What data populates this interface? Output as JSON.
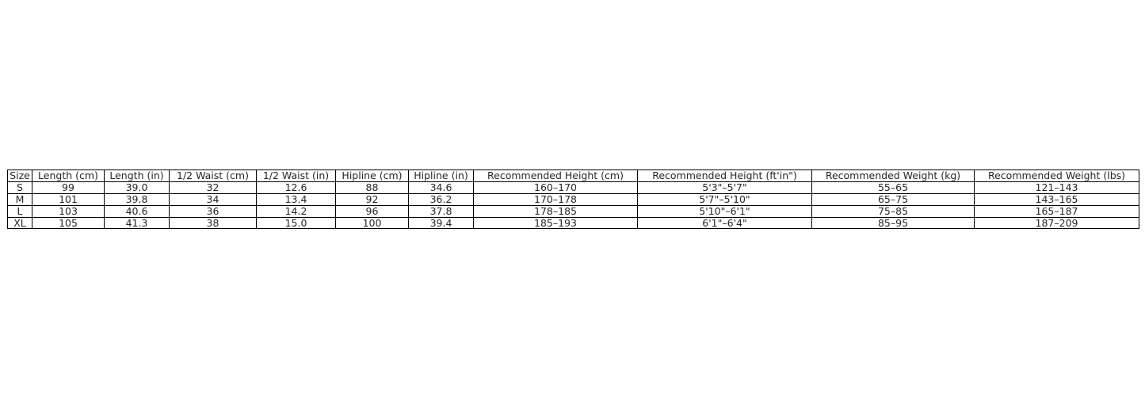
{
  "table": {
    "headers": [
      "Size",
      "Length (cm)",
      "Length (in)",
      "1/2 Waist (cm)",
      "1/2 Waist (in)",
      "Hipline (cm)",
      "Hipline (in)",
      "Recommended Height (cm)",
      "Recommended Height (ft'in\")",
      "Recommended Weight (kg)",
      "Recommended Weight (lbs)"
    ],
    "rows": [
      [
        "S",
        "99",
        "39.0",
        "32",
        "12.6",
        "88",
        "34.6",
        "160–170",
        "5'3\"–5'7\"",
        "55–65",
        "121–143"
      ],
      [
        "M",
        "101",
        "39.8",
        "34",
        "13.4",
        "92",
        "36.2",
        "170–178",
        "5'7\"–5'10\"",
        "65–75",
        "143–165"
      ],
      [
        "L",
        "103",
        "40.6",
        "36",
        "14.2",
        "96",
        "37.8",
        "178–185",
        "5'10\"–6'1\"",
        "75–85",
        "165–187"
      ],
      [
        "XL",
        "105",
        "41.3",
        "38",
        "15.0",
        "100",
        "39.4",
        "185–193",
        "6'1\"–6'4\"",
        "85–95",
        "187–209"
      ]
    ]
  }
}
